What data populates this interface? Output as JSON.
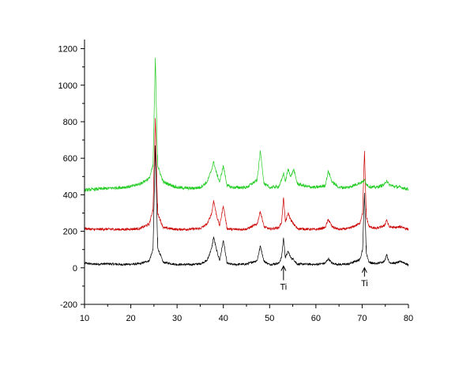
{
  "chart_data": {
    "type": "line",
    "title": "",
    "xlabel": "",
    "ylabel": "",
    "xlim": [
      10,
      80
    ],
    "ylim": [
      -200,
      1250
    ],
    "x_ticks": [
      10,
      20,
      30,
      40,
      50,
      60,
      70,
      80
    ],
    "y_ticks": [
      -200,
      0,
      200,
      400,
      600,
      800,
      1000,
      1200
    ],
    "x_tick_labels": [
      "10",
      "20",
      "30",
      "40",
      "50",
      "60",
      "70",
      "80"
    ],
    "y_tick_labels": [
      "-200",
      "0",
      "200",
      "400",
      "600",
      "800",
      "1000",
      "1200"
    ],
    "grid": false,
    "series": [
      {
        "color": "#000000",
        "x": [
          10,
          12,
          15,
          18,
          20,
          22,
          24,
          24.8,
          25.3,
          25.8,
          27,
          30,
          33,
          35,
          36.5,
          37.5,
          37.9,
          38.5,
          39.2,
          40.0,
          40.8,
          42,
          45,
          47.3,
          48.0,
          48.8,
          50,
          52,
          52.6,
          53.0,
          53.4,
          54.0,
          54.6,
          55.2,
          56,
          58,
          60,
          62,
          62.7,
          63.5,
          65,
          67,
          68.5,
          69.5,
          70.1,
          70.5,
          70.9,
          71.5,
          73,
          74.8,
          75.3,
          75.8,
          77,
          78.5,
          80
        ],
        "y": [
          25,
          20,
          22,
          18,
          20,
          22,
          40,
          100,
          670,
          110,
          30,
          18,
          18,
          22,
          40,
          110,
          170,
          100,
          40,
          150,
          25,
          18,
          20,
          40,
          120,
          35,
          18,
          25,
          60,
          165,
          55,
          90,
          55,
          45,
          20,
          20,
          18,
          25,
          50,
          25,
          18,
          20,
          35,
          45,
          100,
          410,
          80,
          30,
          22,
          35,
          75,
          30,
          25,
          35,
          15
        ]
      },
      {
        "color": "#cc0000",
        "x": [
          10,
          12,
          15,
          18,
          20,
          22,
          24,
          24.8,
          25.3,
          25.8,
          27,
          30,
          33,
          35,
          36.5,
          37.5,
          37.9,
          38.5,
          39.2,
          40.0,
          40.8,
          42,
          45,
          47.3,
          48.0,
          48.8,
          50,
          52,
          52.6,
          53.0,
          53.4,
          54.0,
          54.6,
          55.2,
          56,
          58,
          60,
          62,
          62.7,
          63.5,
          65,
          67,
          68.5,
          69.5,
          70.1,
          70.5,
          70.9,
          71.5,
          73,
          74.8,
          75.3,
          75.8,
          77,
          78.5,
          80
        ],
        "y": [
          215,
          210,
          212,
          210,
          212,
          215,
          240,
          320,
          820,
          300,
          220,
          210,
          212,
          215,
          240,
          300,
          370,
          290,
          230,
          340,
          215,
          210,
          212,
          240,
          310,
          225,
          212,
          220,
          250,
          385,
          250,
          300,
          260,
          240,
          215,
          212,
          210,
          220,
          265,
          225,
          210,
          215,
          230,
          245,
          300,
          640,
          280,
          225,
          215,
          230,
          265,
          225,
          220,
          225,
          210
        ]
      },
      {
        "color": "#22cc22",
        "x": [
          10,
          12,
          15,
          18,
          20,
          22,
          24,
          24.8,
          25.3,
          25.8,
          27,
          30,
          33,
          35,
          36.5,
          37.5,
          37.9,
          38.5,
          39.2,
          40.0,
          40.8,
          42,
          45,
          47.3,
          48.0,
          48.8,
          50,
          52,
          52.6,
          53.0,
          53.4,
          54.0,
          54.6,
          55.2,
          56,
          58,
          60,
          62,
          62.7,
          63.5,
          65,
          67,
          68.5,
          69.5,
          70.1,
          70.5,
          70.9,
          71.5,
          73,
          74.8,
          75.3,
          75.8,
          77,
          78.5,
          80
        ],
        "y": [
          425,
          430,
          435,
          440,
          445,
          460,
          490,
          560,
          1150,
          560,
          470,
          440,
          435,
          440,
          470,
          540,
          580,
          520,
          470,
          560,
          450,
          440,
          440,
          480,
          640,
          460,
          440,
          445,
          480,
          520,
          470,
          540,
          500,
          540,
          460,
          445,
          440,
          450,
          530,
          470,
          440,
          440,
          455,
          465,
          470,
          480,
          460,
          445,
          440,
          455,
          480,
          455,
          445,
          440,
          430
        ]
      }
    ],
    "annotations": [
      {
        "text": "Ti",
        "x": 53.0,
        "y": -120,
        "arrow_to_y": 10
      },
      {
        "text": "Ti",
        "x": 70.5,
        "y": -100,
        "arrow_to_y": 0
      }
    ]
  }
}
